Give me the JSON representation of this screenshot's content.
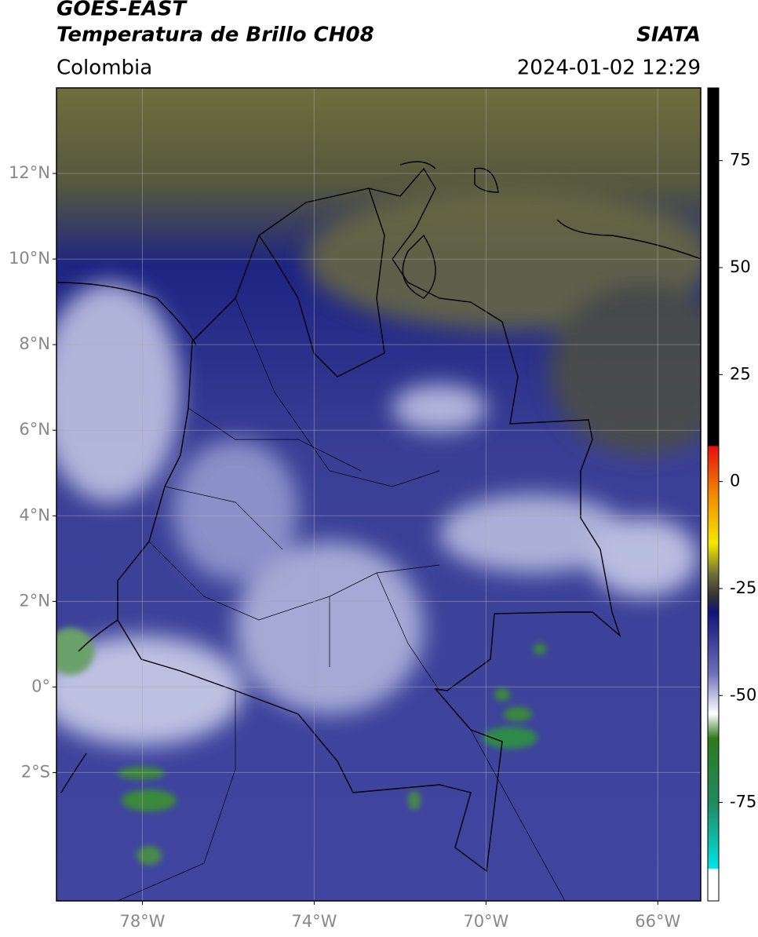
{
  "header": {
    "title": "GOES-EAST",
    "subtitle": "Temperatura de Brillo CH08",
    "source": "SIATA",
    "region": "Colombia",
    "datetime": "2024-01-02 12:29"
  },
  "map": {
    "lonlim": [
      -80,
      -65
    ],
    "latlim": [
      -5,
      14
    ],
    "lonticks": [
      {
        "value": -78,
        "label": "78°W"
      },
      {
        "value": -74,
        "label": "74°W"
      },
      {
        "value": -70,
        "label": "70°W"
      },
      {
        "value": -66,
        "label": "66°W"
      }
    ],
    "latticks": [
      {
        "value": 12,
        "label": "12°N"
      },
      {
        "value": 10,
        "label": "10°N"
      },
      {
        "value": 8,
        "label": "8°N"
      },
      {
        "value": 6,
        "label": "6°N"
      },
      {
        "value": 4,
        "label": "4°N"
      },
      {
        "value": 2,
        "label": "2°N"
      },
      {
        "value": 0,
        "label": "0°"
      },
      {
        "value": -2,
        "label": "2°S"
      }
    ],
    "grid": true
  },
  "colorbar": {
    "lim": [
      -98,
      92
    ],
    "ticks": [
      75,
      50,
      25,
      0,
      -25,
      -50,
      -75
    ]
  }
}
